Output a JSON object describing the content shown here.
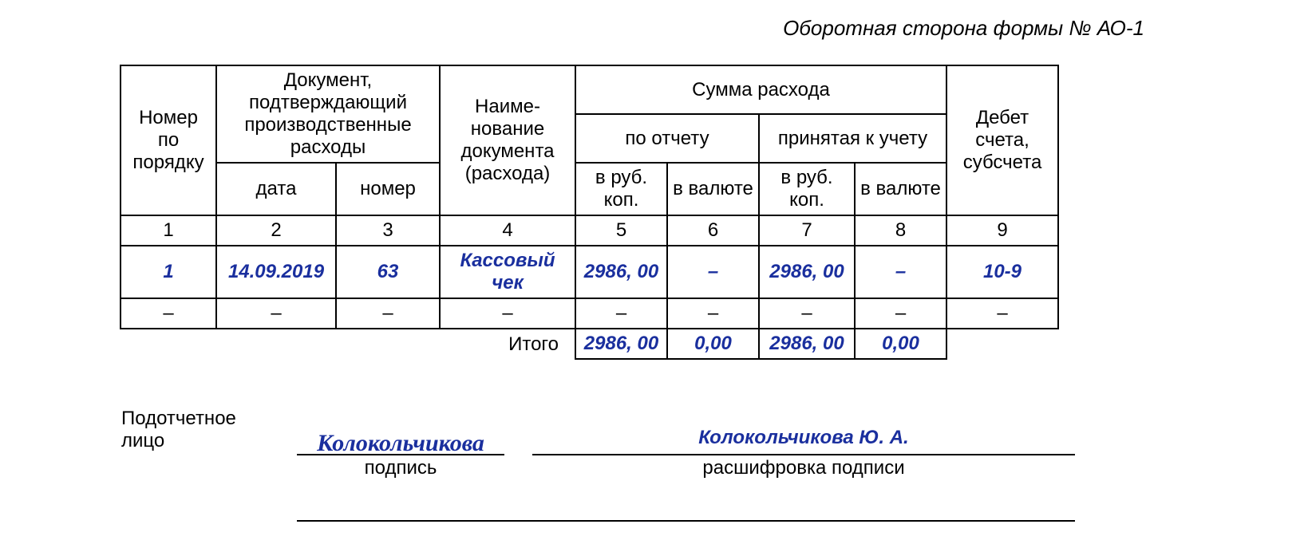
{
  "form_title": "Оборотная сторона формы № АО-1",
  "headers": {
    "col1": "Номер по порядку",
    "col2_group": "Документ, подтверждающий производственные расходы",
    "col2": "дата",
    "col3": "номер",
    "col4": "Наиме-нование документа (расхода)",
    "sum_group": "Сумма расхода",
    "sum_report": "по отчету",
    "sum_accepted": "принятая к учету",
    "col5": "в руб. коп.",
    "col6": "в валюте",
    "col7": "в руб. коп.",
    "col8": "в валюте",
    "col9": "Дебет счета, субсчета"
  },
  "colnums": {
    "c1": "1",
    "c2": "2",
    "c3": "3",
    "c4": "4",
    "c5": "5",
    "c6": "6",
    "c7": "7",
    "c8": "8",
    "c9": "9"
  },
  "row1": {
    "num": "1",
    "date": "14.09.2019",
    "docnum": "63",
    "name": "Кассовый чек",
    "rub_report": "2986, 00",
    "val_report": "–",
    "rub_accept": "2986, 00",
    "val_accept": "–",
    "debit": "10-9"
  },
  "row2": {
    "num": "–",
    "date": "–",
    "docnum": "–",
    "name": "–",
    "rub_report": "–",
    "val_report": "–",
    "rub_accept": "–",
    "val_accept": "–",
    "debit": "–"
  },
  "itogo": {
    "label": "Итого",
    "rub_report": "2986, 00",
    "val_report": "0,00",
    "rub_accept": "2986, 00",
    "val_accept": "0,00"
  },
  "signature": {
    "label_line1": "Подотчетное",
    "label_line2": "лицо",
    "signature_text": "Колокольчикова",
    "sub_sign": "подпись",
    "name": "Колокольчикова Ю. А.",
    "sub_name": "расшифровка подписи"
  },
  "style": {
    "blue_color": "#1a2f9e",
    "text_color": "#000000",
    "background_color": "#ffffff",
    "border_color": "#000000",
    "base_fontsize": 24,
    "title_fontsize": 26
  }
}
